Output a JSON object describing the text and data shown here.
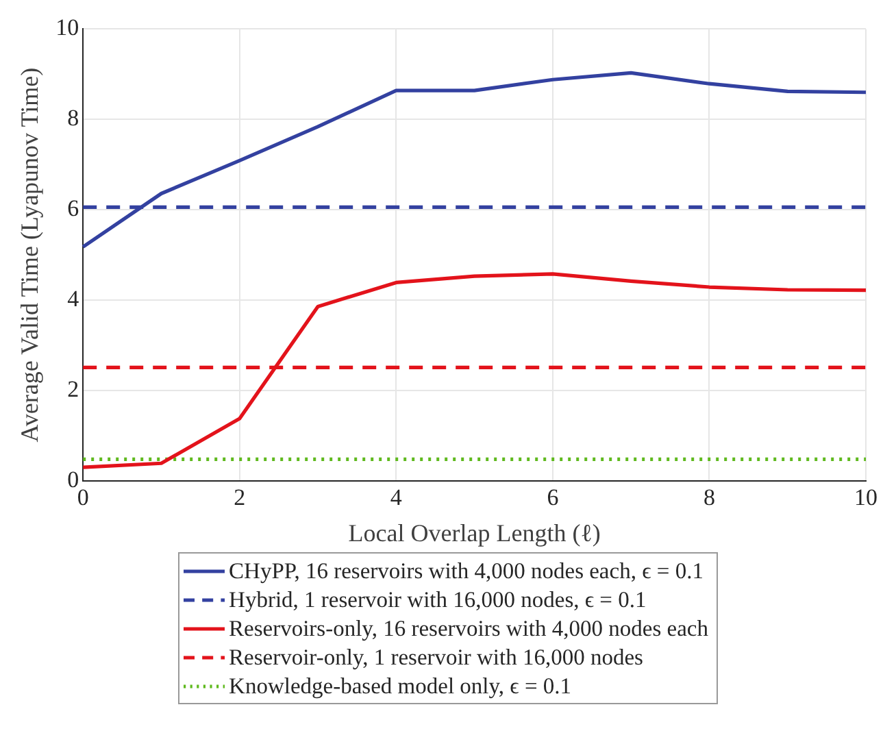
{
  "chart_data": {
    "type": "line",
    "xlabel": "Local Overlap Length (ℓ)",
    "ylabel": "Average Valid Time (Lyapunov Time)",
    "x": [
      0,
      1,
      2,
      3,
      4,
      5,
      6,
      7,
      8,
      9,
      10
    ],
    "series": [
      {
        "name": "CHyPP, 16 reservoirs with 4,000 nodes each, ϵ = 0.1",
        "color": "#3341a0",
        "line_style": "solid",
        "values": [
          5.18,
          6.36,
          7.09,
          7.84,
          8.64,
          8.64,
          8.88,
          9.03,
          8.79,
          8.62,
          8.6
        ]
      },
      {
        "name": "Hybrid, 1 reservoir with 16,000 nodes, ϵ = 0.1",
        "color": "#3341a0",
        "line_style": "dashed",
        "values": [
          6.06,
          6.06,
          6.06,
          6.06,
          6.06,
          6.06,
          6.06,
          6.06,
          6.06,
          6.06,
          6.06
        ]
      },
      {
        "name": "Reservoirs-only, 16 reservoirs with 4,000 nodes each",
        "color": "#e3131b",
        "line_style": "solid",
        "values": [
          0.3,
          0.39,
          1.38,
          3.86,
          4.39,
          4.53,
          4.58,
          4.42,
          4.29,
          4.23,
          4.22
        ]
      },
      {
        "name": "Reservoir-only, 1 reservoir with 16,000 nodes",
        "color": "#e3131b",
        "line_style": "dashed",
        "values": [
          2.51,
          2.51,
          2.51,
          2.51,
          2.51,
          2.51,
          2.51,
          2.51,
          2.51,
          2.51,
          2.51
        ]
      },
      {
        "name": "Knowledge-based model only, ϵ = 0.1",
        "color": "#5fb91e",
        "line_style": "dotted",
        "values": [
          0.48,
          0.48,
          0.48,
          0.48,
          0.48,
          0.48,
          0.48,
          0.48,
          0.48,
          0.48,
          0.48
        ]
      }
    ],
    "xlim": [
      0,
      10
    ],
    "xticks": [
      0,
      2,
      4,
      6,
      8,
      10
    ],
    "ylim": [
      0,
      10
    ],
    "yticks": [
      0,
      2,
      4,
      6,
      8,
      10
    ],
    "grid": true,
    "legend": "bottom",
    "marker": "none"
  }
}
